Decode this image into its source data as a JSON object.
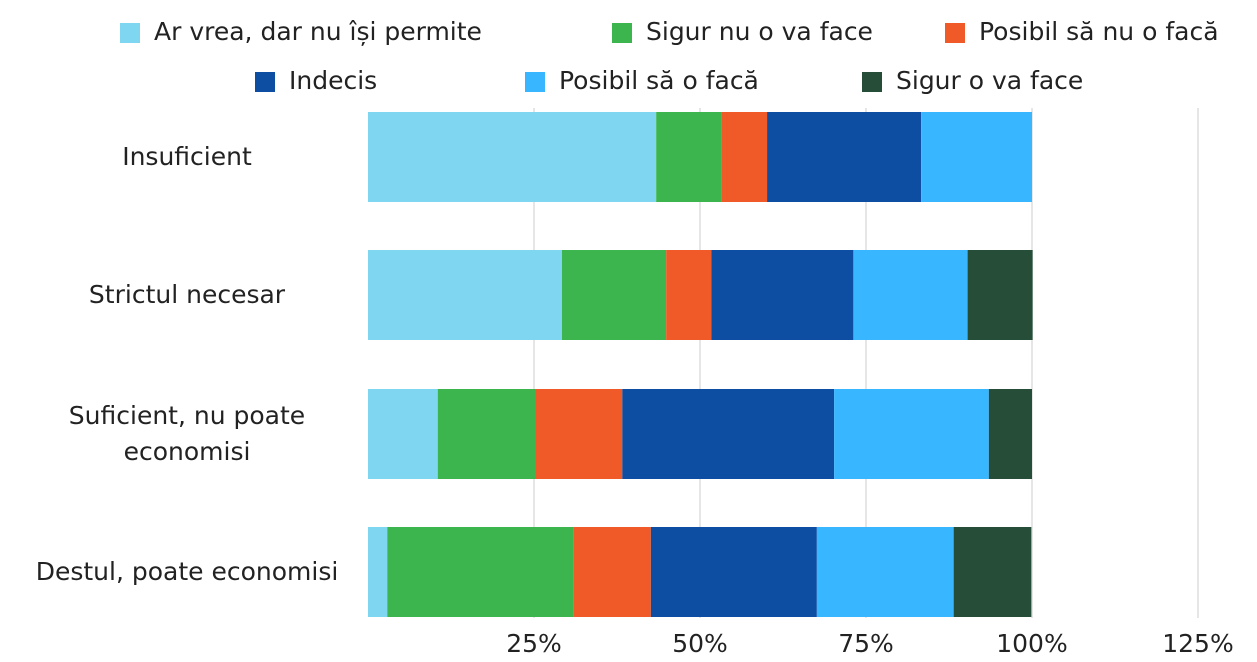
{
  "chart_data": {
    "type": "stacked-bar-horizontal",
    "categories": [
      "Insuficient",
      "Strictul necesar",
      "Suficient, nu poate economisi",
      "Destul, poate economisi"
    ],
    "series": [
      {
        "name": "Ar vrea, dar nu își permite",
        "color": "#7fd6f1",
        "values": [
          43.4,
          29.2,
          10.5,
          2.9
        ]
      },
      {
        "name": "Sigur nu o va face",
        "color": "#3cb54f",
        "values": [
          9.9,
          15.7,
          14.8,
          28.0
        ]
      },
      {
        "name": "Posibil să nu o facă",
        "color": "#f05a28",
        "values": [
          6.8,
          6.8,
          13.0,
          11.7
        ]
      },
      {
        "name": "Indecis",
        "color": "#0d4ea3",
        "values": [
          23.2,
          21.4,
          31.9,
          25.0
        ]
      },
      {
        "name": "Posibil să o facă",
        "color": "#38b6ff",
        "values": [
          16.7,
          17.2,
          23.3,
          20.6
        ]
      },
      {
        "name": "Sigur o va face",
        "color": "#264d37",
        "values": [
          0,
          9.8,
          6.5,
          11.7
        ]
      }
    ],
    "xlim": [
      0,
      125
    ],
    "xticks": [
      {
        "value": 25,
        "label": "25%"
      },
      {
        "value": 50,
        "label": "50%"
      },
      {
        "value": 75,
        "label": "75%"
      },
      {
        "value": 100,
        "label": "100%"
      },
      {
        "value": 125,
        "label": "125%"
      }
    ],
    "grid": true,
    "legend": "top"
  }
}
